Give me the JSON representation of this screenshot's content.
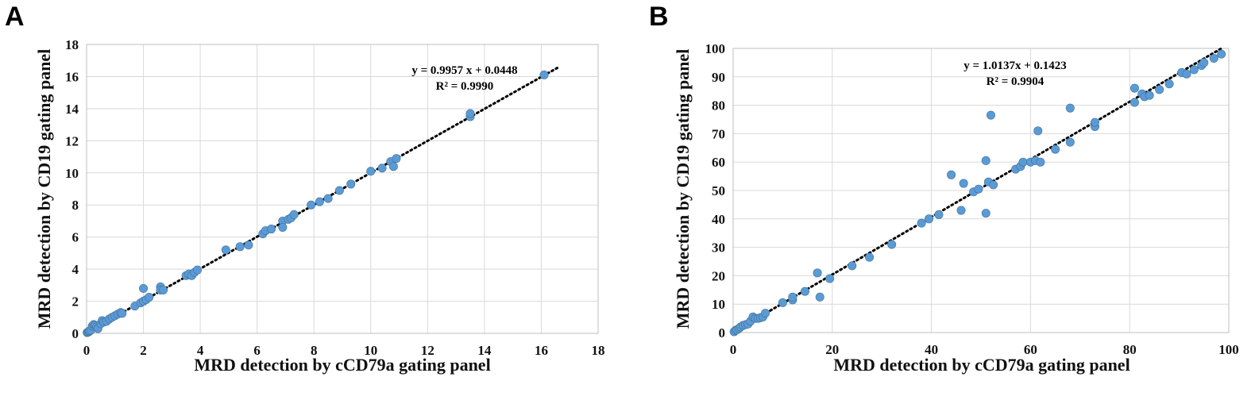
{
  "chart_data": [
    {
      "type": "scatter",
      "panel": "A",
      "xlabel": "MRD detection by cCD79a gating panel",
      "ylabel": "MRD detection by CD19 gating panel",
      "xlim": [
        0,
        18
      ],
      "ylim": [
        0,
        18
      ],
      "xticks": [
        0,
        2,
        4,
        6,
        8,
        10,
        12,
        14,
        16,
        18
      ],
      "yticks": [
        0,
        2,
        4,
        6,
        8,
        10,
        12,
        14,
        16,
        18
      ],
      "equation": "y = 0.9957 x + 0.0448",
      "r_squared": "R² = 0.9990",
      "trendline": {
        "slope": 0.9957,
        "intercept": 0.0448
      },
      "grid": true,
      "color": "#5b9bd5",
      "x": [
        0.02,
        0.05,
        0.08,
        0.1,
        0.15,
        0.2,
        0.25,
        0.3,
        0.35,
        0.4,
        0.5,
        0.55,
        0.6,
        0.7,
        0.8,
        0.9,
        1.0,
        1.1,
        1.2,
        1.25,
        1.7,
        1.9,
        2.0,
        2.0,
        2.1,
        2.2,
        2.6,
        2.6,
        2.7,
        3.5,
        3.6,
        3.7,
        3.8,
        3.9,
        4.9,
        5.4,
        5.7,
        6.2,
        6.3,
        6.5,
        6.9,
        6.9,
        7.1,
        7.2,
        7.3,
        7.9,
        8.2,
        8.5,
        8.9,
        9.3,
        10.0,
        10.4,
        10.7,
        10.8,
        10.9,
        13.5,
        13.5,
        16.1
      ],
      "y": [
        0.05,
        0.08,
        0.1,
        0.15,
        0.2,
        0.45,
        0.55,
        0.5,
        0.4,
        0.3,
        0.6,
        0.8,
        0.7,
        0.75,
        0.9,
        1.0,
        1.1,
        1.2,
        1.3,
        1.25,
        1.7,
        1.9,
        2.8,
        2.0,
        2.1,
        2.25,
        2.9,
        2.7,
        2.7,
        3.6,
        3.7,
        3.6,
        3.8,
        3.95,
        5.2,
        5.4,
        5.5,
        6.2,
        6.4,
        6.5,
        7.0,
        6.6,
        7.1,
        7.2,
        7.4,
        8.0,
        8.2,
        8.4,
        8.9,
        9.3,
        10.1,
        10.3,
        10.7,
        10.4,
        10.9,
        13.5,
        13.7,
        16.1
      ]
    },
    {
      "type": "scatter",
      "panel": "B",
      "xlabel": "MRD detection by cCD79a gating panel",
      "ylabel": "MRD detection by CD19 gating panel",
      "xlim": [
        0,
        100
      ],
      "ylim": [
        0,
        100
      ],
      "xticks": [
        0,
        20,
        40,
        60,
        80,
        100
      ],
      "yticks": [
        0,
        10,
        20,
        30,
        40,
        50,
        60,
        70,
        80,
        90,
        100
      ],
      "equation": "y = 1.0137x + 0.1423",
      "r_squared": "R² = 0.9904",
      "trendline": {
        "slope": 1.0137,
        "intercept": 0.1423
      },
      "grid": true,
      "color": "#5b9bd5",
      "x": [
        0.2,
        0.5,
        0.8,
        1.2,
        1.5,
        2.0,
        2.5,
        3.0,
        3.5,
        4.0,
        4.5,
        5.0,
        5.5,
        6.0,
        6.5,
        10.0,
        12.0,
        12.0,
        14.5,
        17.0,
        17.5,
        19.5,
        24.0,
        27.5,
        32.0,
        38.0,
        39.5,
        41.5,
        44.0,
        46.0,
        46.5,
        48.5,
        49.5,
        51.0,
        51.0,
        51.5,
        52.0,
        52.5,
        57.0,
        58.0,
        58.5,
        60.0,
        61.0,
        61.5,
        62.0,
        65.0,
        68.0,
        68.0,
        73.0,
        73.0,
        81.0,
        81.0,
        82.5,
        83.0,
        84.0,
        86.0,
        88.0,
        90.5,
        91.5,
        93.0,
        94.5,
        95.0,
        97.0,
        98.5
      ],
      "y": [
        0.3,
        0.8,
        1.0,
        1.5,
        2.0,
        2.5,
        2.8,
        3.0,
        4.0,
        5.5,
        5.0,
        5.0,
        5.2,
        5.5,
        6.8,
        10.5,
        11.5,
        12.5,
        14.5,
        21.0,
        12.5,
        19.0,
        23.5,
        26.5,
        31.0,
        38.5,
        40.0,
        41.5,
        55.5,
        43.0,
        52.5,
        49.5,
        50.5,
        60.5,
        42.0,
        53.0,
        76.5,
        52.0,
        57.5,
        58.5,
        60.0,
        60.0,
        60.5,
        71.0,
        60.0,
        64.5,
        67.0,
        79.0,
        72.5,
        74.0,
        81.0,
        86.0,
        84.0,
        83.0,
        83.5,
        85.5,
        87.5,
        91.5,
        91.0,
        92.5,
        94.0,
        95.0,
        96.5,
        98.0
      ]
    }
  ]
}
